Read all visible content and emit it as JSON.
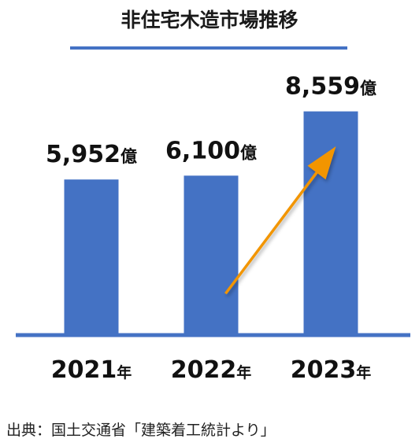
{
  "chart_data": {
    "type": "bar",
    "title": "非住宅木造市場推移",
    "categories": [
      "2021",
      "2022",
      "2023"
    ],
    "category_unit": "年",
    "values": [
      5952,
      6100,
      8559
    ],
    "value_labels": [
      "5,952",
      "6,100",
      "8,559"
    ],
    "value_unit": "億",
    "source": "出典：国土交通省「建築着工統計より」",
    "xlabel": "",
    "ylabel": "",
    "grid": false,
    "legend": "none",
    "annotation": "upward-trend-arrow",
    "colors": {
      "bar": "#4472c4",
      "axis": "#4472c4",
      "title_underline": "#4472c4",
      "arrow": "#f29500"
    }
  }
}
